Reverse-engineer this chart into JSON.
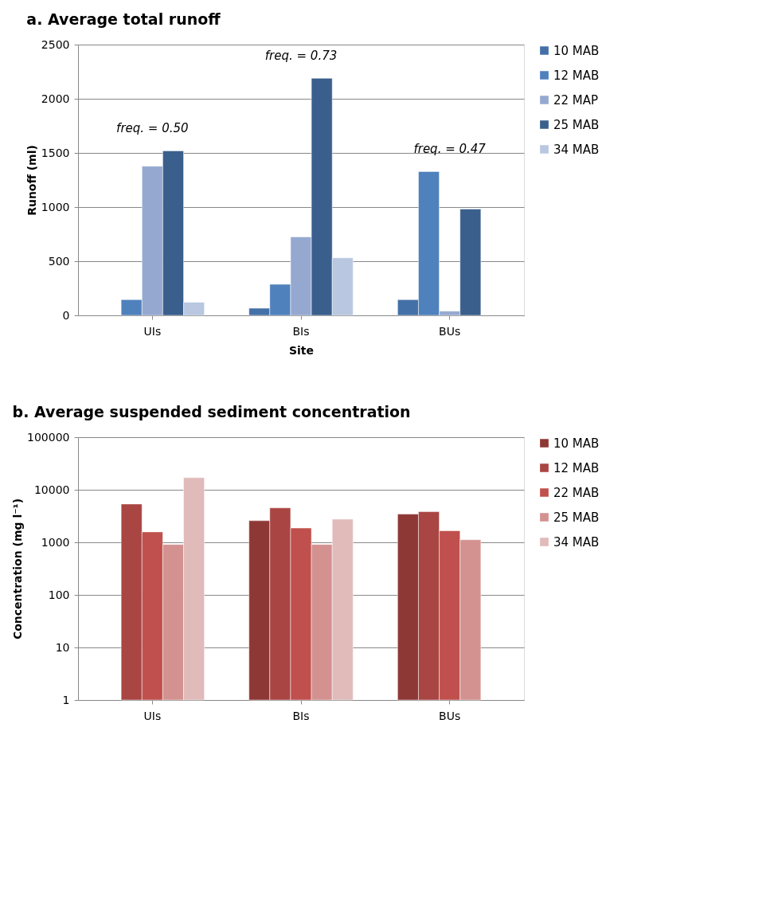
{
  "chart_data": [
    {
      "type": "bar",
      "title": "a.  Average total runoff",
      "xlabel": "Site",
      "ylabel": "Runoff (ml)",
      "categories": [
        "UIs",
        "BIs",
        "BUs"
      ],
      "series": [
        {
          "name": "10 MAB",
          "color": "#4470a8",
          "values": [
            null,
            66,
            145
          ]
        },
        {
          "name": "12 MAB",
          "color": "#4f81bd",
          "values": [
            145,
            287,
            1328
          ]
        },
        {
          "name": "22 MAP",
          "color": "#95a9d0",
          "values": [
            1377,
            725,
            39
          ]
        },
        {
          "name": "25 MAB",
          "color": "#3a5f8c",
          "values": [
            1519,
            2189,
            981
          ]
        },
        {
          "name": "34 MAB",
          "color": "#b9c7e0",
          "values": [
            121,
            531,
            null
          ]
        }
      ],
      "ylim": [
        0,
        2500
      ],
      "yticks": [
        0,
        500,
        1000,
        1500,
        2000,
        2500
      ],
      "grid": "y",
      "legend": "right",
      "annotations": [
        "freq. = 0.50",
        "freq. = 0.73",
        "freq. = 0.47"
      ]
    },
    {
      "type": "bar",
      "title": "b.  Average suspended sediment concentration",
      "ylabel": "Concentration (mg l⁻¹)",
      "categories": [
        "UIs",
        "BIs",
        "BUs"
      ],
      "series": [
        {
          "name": "10 MAB",
          "color": "#8e3836",
          "values": [
            null,
            2580,
            3440
          ]
        },
        {
          "name": "12 MAB",
          "color": "#a94542",
          "values": [
            5360,
            4520,
            3820
          ]
        },
        {
          "name": "22 MAB",
          "color": "#c0504d",
          "values": [
            1580,
            1870,
            1660
          ]
        },
        {
          "name": "25 MAB",
          "color": "#d39290",
          "values": [
            912,
            912,
            1120
          ]
        },
        {
          "name": "34 MAB",
          "color": "#e1baba",
          "values": [
            17000,
            2760,
            null
          ]
        }
      ],
      "ylim": [
        1,
        100000
      ],
      "yticks": [
        1,
        10,
        100,
        1000,
        10000,
        100000
      ],
      "log": true,
      "grid": "y",
      "legend": "right"
    }
  ]
}
